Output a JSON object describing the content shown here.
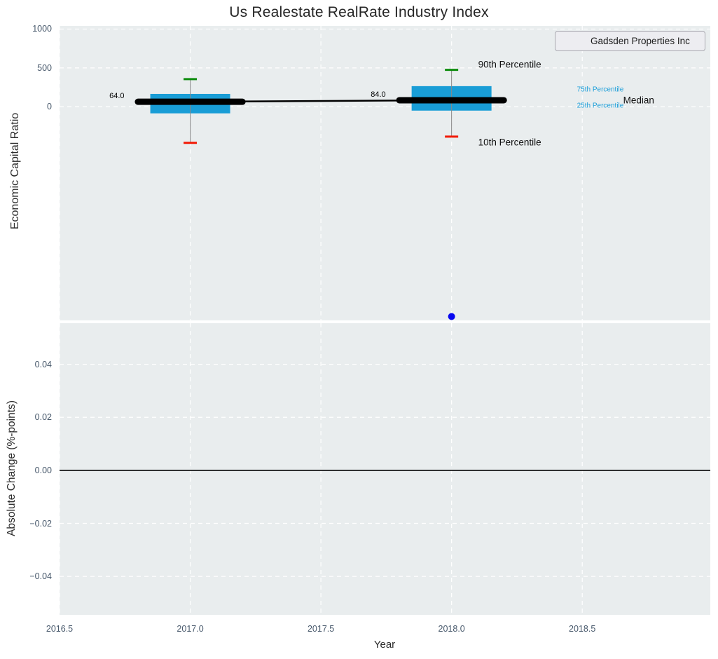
{
  "figure": {
    "title": "Us Realestate RealRate Industry Index",
    "xlabel": "Year",
    "legend": {
      "label": "Gadsden Properties Inc"
    }
  },
  "colors": {
    "axes_background": "#e9edee",
    "grid": "#ffffff",
    "box_fill": "#199dd6",
    "whisker": "#888888",
    "cap_90th": "#0d8c0d",
    "cap_10th": "#f21905",
    "median_line": "#000000",
    "series_blue": "#0707f0",
    "tick_text": "#47586b",
    "zero_line": "#000000",
    "annotation_cyan": "#1b9ed9"
  },
  "chart_data": [
    {
      "type": "boxplot",
      "title": "Us Realestate RealRate Industry Index",
      "ylabel": "Economic Capital Ratio",
      "xlabel": "Year",
      "xlim": [
        2016.5,
        2018.99
      ],
      "ylim": [
        -2750,
        1040
      ],
      "grid": true,
      "yticks": [
        {
          "value": 0,
          "label": "0"
        },
        {
          "value": 500,
          "label": "500"
        },
        {
          "value": 1000,
          "label": "1000"
        }
      ],
      "xticks": [
        {
          "value": 2016.5,
          "label": "2016.5"
        },
        {
          "value": 2017.0,
          "label": "2017.0"
        },
        {
          "value": 2017.5,
          "label": "2017.5"
        },
        {
          "value": 2018.0,
          "label": "2018.0"
        },
        {
          "value": 2018.5,
          "label": "2018.5"
        }
      ],
      "boxes": [
        {
          "year": 2017,
          "p10": -465,
          "q1": -85,
          "median": 64,
          "q3": 165,
          "p90": 355,
          "median_label": "64.0"
        },
        {
          "year": 2018,
          "p10": -385,
          "q1": -50,
          "median": 84,
          "q3": 265,
          "p90": 475,
          "median_label": "84.0"
        }
      ],
      "median_trend": [
        {
          "x": 2017,
          "y": 64
        },
        {
          "x": 2018,
          "y": 84
        }
      ],
      "series": [
        {
          "name": "Gadsden Properties Inc",
          "type": "scatter",
          "color": "#0707f0",
          "points": [
            {
              "x": 2018,
              "y": -2700
            }
          ]
        }
      ],
      "annotations": {
        "p90": "90th Percentile",
        "p10": "10th Percentile",
        "p75": "75th Percentile",
        "p25": "25th Percentile",
        "median": "Median"
      },
      "legend_position": "upper right"
    },
    {
      "type": "line",
      "ylabel": "Absolute Change (%-points)",
      "xlim": [
        2016.5,
        2018.99
      ],
      "ylim": [
        -0.0545,
        0.0555
      ],
      "grid": true,
      "zero_line_y": 0,
      "yticks": [
        {
          "value": 0.04,
          "label": "0.04"
        },
        {
          "value": 0.02,
          "label": "0.02"
        },
        {
          "value": 0.0,
          "label": "0.00"
        },
        {
          "value": -0.02,
          "label": "−0.02"
        },
        {
          "value": -0.04,
          "label": "−0.04"
        }
      ],
      "series": []
    }
  ]
}
